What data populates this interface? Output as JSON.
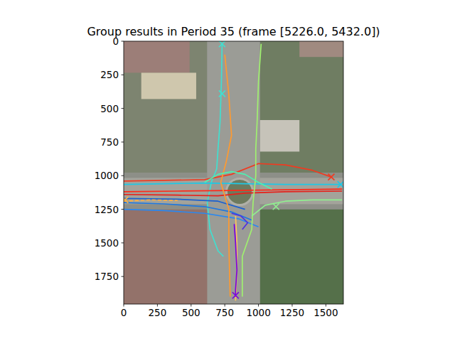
{
  "chart_data": {
    "type": "line",
    "title": "Group results in Period 35 (frame [5226.0, 5432.0])",
    "xlim": [
      0,
      1630
    ],
    "ylim": [
      1955,
      0
    ],
    "xticks": [
      0,
      250,
      500,
      750,
      1000,
      1250,
      1500
    ],
    "yticks": [
      0,
      250,
      500,
      750,
      1000,
      1250,
      1500,
      1750
    ],
    "grid": false,
    "series": [
      {
        "color": "#40e0d0",
        "x": [
          730,
          725,
          715,
          700,
          690,
          650,
          620,
          640,
          700,
          740
        ],
        "values": [
          20,
          300,
          600,
          800,
          950,
          1050,
          1200,
          1400,
          1560,
          1600
        ]
      },
      {
        "color": "#1ec8e6",
        "x": [
          0,
          300,
          600,
          900,
          1200,
          1500,
          1620
        ],
        "values": [
          1065,
          1060,
          1055,
          1060,
          1065,
          1065,
          1065
        ]
      },
      {
        "color": "#ff2a1a",
        "x": [
          0,
          400,
          800,
          1200,
          1620
        ],
        "values": [
          1120,
          1115,
          1110,
          1105,
          1100
        ]
      },
      {
        "color": "#f03a20",
        "x": [
          0,
          300,
          600,
          800,
          1000,
          1200,
          1400,
          1540
        ],
        "values": [
          1040,
          1035,
          1030,
          990,
          910,
          920,
          960,
          1010
        ]
      },
      {
        "color": "#e8201a",
        "x": [
          0,
          400,
          700,
          900,
          1200,
          1620
        ],
        "values": [
          1140,
          1145,
          1150,
          1130,
          1120,
          1115
        ]
      },
      {
        "color": "#1f78e0",
        "x": [
          0,
          300,
          600,
          800,
          950
        ],
        "values": [
          1200,
          1210,
          1230,
          1270,
          1330
        ]
      },
      {
        "color": "#2a88f0",
        "x": [
          0,
          300,
          600,
          850,
          1000
        ],
        "values": [
          1250,
          1260,
          1280,
          1320,
          1380
        ]
      },
      {
        "color": "#1a60d0",
        "x": [
          0,
          400,
          700,
          900
        ],
        "values": [
          1170,
          1175,
          1190,
          1250
        ]
      },
      {
        "color": "#ff9a30",
        "x": [
          750,
          780,
          800,
          760,
          720,
          780,
          780,
          790
        ],
        "values": [
          100,
          400,
          700,
          900,
          1050,
          1250,
          1500,
          1900
        ]
      },
      {
        "color": "#ffb040",
        "line_style": "dashed",
        "x": [
          0,
          200,
          400
        ],
        "values": [
          1190,
          1180,
          1185
        ]
      },
      {
        "color": "#a0f070",
        "x": [
          1020,
          1000,
          990,
          980,
          980,
          960,
          950,
          880,
          880
        ],
        "values": [
          20,
          300,
          600,
          800,
          1000,
          1200,
          1400,
          1600,
          1900
        ]
      },
      {
        "color": "#90f090",
        "x": [
          1620,
          1400,
          1200,
          1050,
          950
        ],
        "values": [
          1180,
          1180,
          1190,
          1220,
          1300
        ]
      },
      {
        "color": "#50f0b0",
        "x": [
          600,
          700,
          800,
          900,
          1000,
          1100
        ],
        "values": [
          1050,
          990,
          970,
          990,
          1050,
          1100
        ]
      },
      {
        "color": "#ffc060",
        "x": [
          830,
          840,
          840,
          830
        ],
        "values": [
          1300,
          1500,
          1700,
          1930
        ]
      },
      {
        "color": "#7b00e0",
        "x": [
          820,
          830,
          840,
          830,
          830
        ],
        "values": [
          1360,
          1500,
          1700,
          1850,
          1900
        ]
      },
      {
        "color": "#5030e0",
        "x": [
          800,
          870,
          920,
          880
        ],
        "values": [
          1280,
          1300,
          1350,
          1400
        ]
      },
      {
        "type": "scatter",
        "marker": "x",
        "colors": [
          "#40e0d0",
          "#40e0d0",
          "#1ec8e6",
          "#f03a20",
          "#90f090",
          "#7b00e0",
          "#ffb040"
        ],
        "x": [
          730,
          730,
          1610,
          1540,
          1130,
          830,
          10
        ],
        "values": [
          20,
          390,
          1065,
          1010,
          1230,
          1890,
          1180
        ]
      }
    ]
  }
}
